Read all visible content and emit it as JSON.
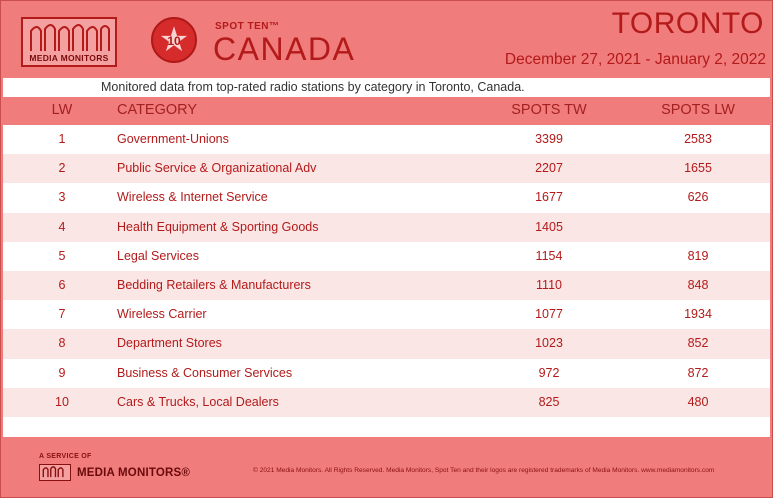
{
  "header": {
    "brand": "MEDIA MONITORS",
    "badge_number": "10",
    "badge_label": "SPOT TEN™",
    "country": "CANADA",
    "city": "TORONTO",
    "date_range": "December 27, 2021 - January 2, 2022"
  },
  "subtitle": "Monitored data from top-rated radio stations by category in Toronto, Canada.",
  "table": {
    "columns": {
      "lw": "LW",
      "category": "CATEGORY",
      "spots_tw": "SPOTS TW",
      "spots_lw": "SPOTS LW"
    },
    "rows": [
      {
        "lw": "1",
        "category": "Government-Unions",
        "spots_tw": "3399",
        "spots_lw": "2583"
      },
      {
        "lw": "2",
        "category": "Public Service & Organizational Adv",
        "spots_tw": "2207",
        "spots_lw": "1655"
      },
      {
        "lw": "3",
        "category": "Wireless & Internet Service",
        "spots_tw": "1677",
        "spots_lw": "626"
      },
      {
        "lw": "4",
        "category": "Health Equipment & Sporting Goods",
        "spots_tw": "1405",
        "spots_lw": ""
      },
      {
        "lw": "5",
        "category": "Legal Services",
        "spots_tw": "1154",
        "spots_lw": "819"
      },
      {
        "lw": "6",
        "category": "Bedding Retailers & Manufacturers",
        "spots_tw": "1110",
        "spots_lw": "848"
      },
      {
        "lw": "7",
        "category": "Wireless Carrier",
        "spots_tw": "1077",
        "spots_lw": "1934"
      },
      {
        "lw": "8",
        "category": "Department Stores",
        "spots_tw": "1023",
        "spots_lw": "852"
      },
      {
        "lw": "9",
        "category": "Business & Consumer Services",
        "spots_tw": "972",
        "spots_lw": "872"
      },
      {
        "lw": "10",
        "category": "Cars & Trucks, Local Dealers",
        "spots_tw": "825",
        "spots_lw": "480"
      }
    ]
  },
  "footer": {
    "service_label": "A SERVICE OF",
    "brand": "MEDIA MONITORS®",
    "copyright": "© 2021 Media Monitors. All Rights Reserved. Media Monitors, Spot Ten and their logos are registered trademarks of Media Monitors. www.mediamonitors.com"
  },
  "colors": {
    "background": "#f07c7c",
    "accent": "#b31a1a",
    "row_alt": "#fbe6e6"
  }
}
